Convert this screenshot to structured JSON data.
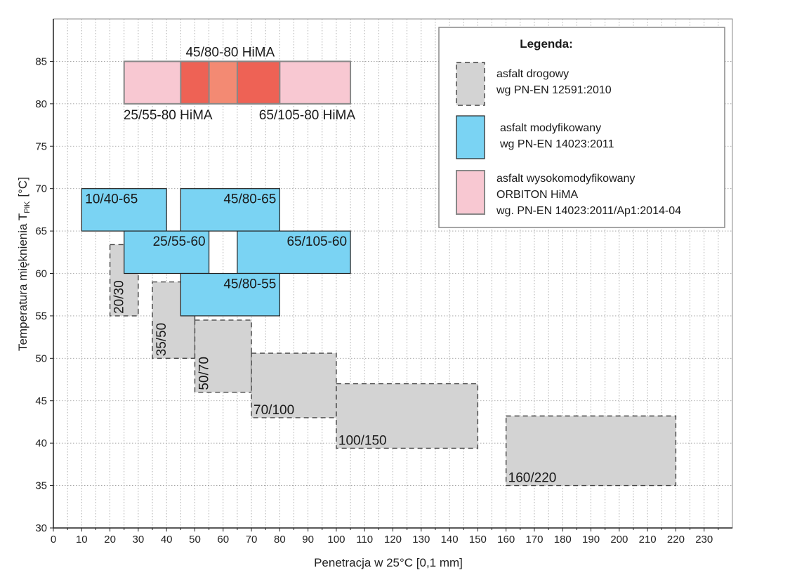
{
  "chart_data": {
    "type": "range-box",
    "xlabel": "Penetracja w 25°C [0,1 mm]",
    "ylabel": "Temperatura mięknienia T",
    "ylabel_sub": "PiK",
    "ylabel_unit": "[°C]",
    "xlim": [
      0,
      240
    ],
    "ylim": [
      30,
      90
    ],
    "x_ticks": [
      0,
      10,
      20,
      30,
      40,
      50,
      60,
      70,
      80,
      90,
      100,
      110,
      120,
      130,
      140,
      150,
      160,
      170,
      180,
      190,
      200,
      210,
      220,
      230
    ],
    "y_ticks": [
      30,
      35,
      40,
      45,
      50,
      55,
      60,
      65,
      70,
      75,
      80,
      85
    ],
    "grid": true,
    "colors": {
      "road": "#d3d3d3",
      "modified": "#7ad3f3",
      "hima": "#f8c8d2",
      "hima_dark": "#ee6255",
      "hima_mid": "#f38a73"
    },
    "legend": {
      "position": "top-right",
      "title": "Legenda:",
      "entries": [
        {
          "category": "road",
          "lines": [
            "asfalt drogowy",
            "wg PN-EN 12591:2010"
          ]
        },
        {
          "category": "modified",
          "lines": [
            "asfalt modyfikowany",
            "wg PN-EN 14023:2011"
          ]
        },
        {
          "category": "hima",
          "lines": [
            "asfalt wysokomodyfikowany",
            "ORBITON HiMA",
            "wg. PN-EN 14023:2011/Ap1:2014-04"
          ]
        }
      ]
    },
    "series": [
      {
        "label": "20/30",
        "category": "road",
        "x": [
          20,
          30
        ],
        "y": [
          55,
          63.4
        ]
      },
      {
        "label": "35/50",
        "category": "road",
        "x": [
          35,
          50
        ],
        "y": [
          50,
          59
        ]
      },
      {
        "label": "50/70",
        "category": "road",
        "x": [
          50,
          70
        ],
        "y": [
          46,
          54.5
        ]
      },
      {
        "label": "70/100",
        "category": "road",
        "x": [
          70,
          100
        ],
        "y": [
          43,
          50.6
        ]
      },
      {
        "label": "100/150",
        "category": "road",
        "x": [
          100,
          150
        ],
        "y": [
          39.4,
          47
        ]
      },
      {
        "label": "160/220",
        "category": "road",
        "x": [
          160,
          220
        ],
        "y": [
          35,
          43.2
        ]
      },
      {
        "label": "10/40-65",
        "category": "modified",
        "x": [
          10,
          40
        ],
        "y": [
          65,
          70
        ]
      },
      {
        "label": "45/80-65",
        "category": "modified",
        "x": [
          45,
          80
        ],
        "y": [
          65,
          70
        ]
      },
      {
        "label": "25/55-60",
        "category": "modified",
        "x": [
          25,
          55
        ],
        "y": [
          60,
          65
        ]
      },
      {
        "label": "65/105-60",
        "category": "modified",
        "x": [
          65,
          105
        ],
        "y": [
          60,
          65
        ]
      },
      {
        "label": "45/80-55",
        "category": "modified",
        "x": [
          45,
          80
        ],
        "y": [
          55,
          60
        ]
      },
      {
        "label": "25/55-80 HiMA",
        "category": "hima",
        "x": [
          25,
          55
        ],
        "y": [
          80,
          85
        ]
      },
      {
        "label": "45/80-80 HiMA",
        "category": "hima",
        "x": [
          45,
          80
        ],
        "y": [
          80,
          85
        ]
      },
      {
        "label": "65/105-80 HiMA",
        "category": "hima",
        "x": [
          65,
          105
        ],
        "y": [
          80,
          85
        ]
      }
    ]
  }
}
